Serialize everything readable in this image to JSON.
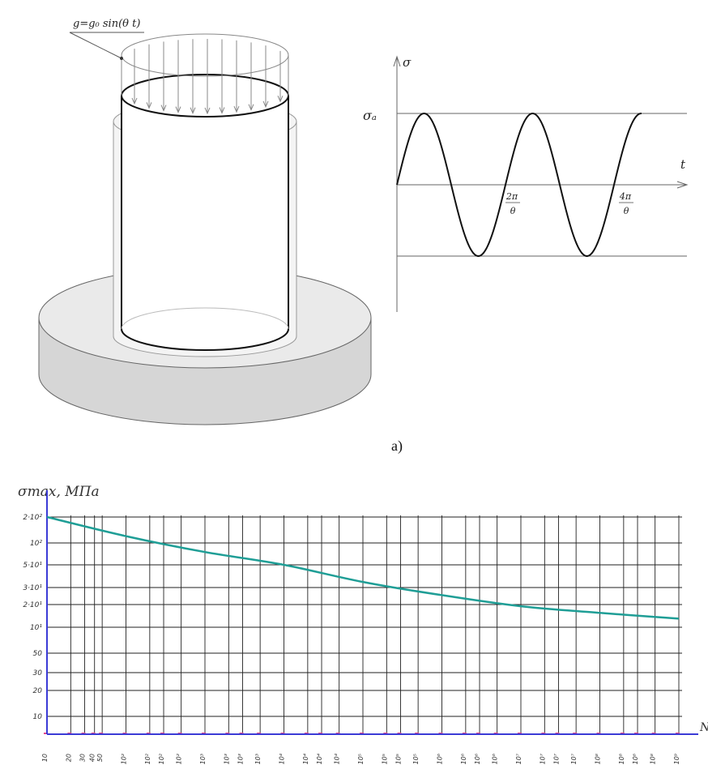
{
  "figure_a": {
    "load_label": "g=g₀ sin(θ t)",
    "caption": "a)"
  },
  "stress_wave": {
    "y_axis_label": "σ",
    "amplitude_label": "σₐ",
    "x_axis_label": "t",
    "tick1_num": "2π",
    "tick1_den": "θ",
    "tick2_num": "4π",
    "tick2_den": "θ"
  },
  "chart_data": {
    "type": "line",
    "ylabel": "σmax, МПа",
    "xlabel": "N",
    "log_x": true,
    "log_y": true,
    "grid": true,
    "y_ticks": [
      "2·10²",
      "10²",
      "5·10¹",
      "3·10¹",
      "2·10¹",
      "10¹",
      "50",
      "30",
      "20",
      "10"
    ],
    "x_ticks": [
      "10",
      "20",
      "30",
      "40",
      "50",
      "10²",
      "2·10²",
      "3·10²",
      "5·10²",
      "10³",
      "2·10³",
      "3·10³",
      "5·10³",
      "10⁴",
      "2·10⁴",
      "3·10⁴",
      "5·10⁴",
      "10⁵",
      "2·10⁵",
      "3·10⁵",
      "5·10⁵",
      "10⁶",
      "2·10⁶",
      "3·10⁶",
      "5·10⁶",
      "10⁷",
      "2·10⁷",
      "3·10⁷",
      "5·10⁷",
      "10⁸",
      "2·10⁸",
      "3·10⁸",
      "5·10⁸",
      "10⁹"
    ],
    "series": [
      {
        "x": [
          10,
          100,
          1000,
          10000,
          100000,
          1000000,
          10000000,
          100000000,
          1000000000
        ],
        "y": [
          200,
          120,
          75,
          50,
          34,
          25,
          19,
          15.5,
          13
        ]
      }
    ],
    "line_color": "#1f9e96",
    "axis_color": "#3b3bd6",
    "tick_mark_color": "#e14a8c"
  }
}
